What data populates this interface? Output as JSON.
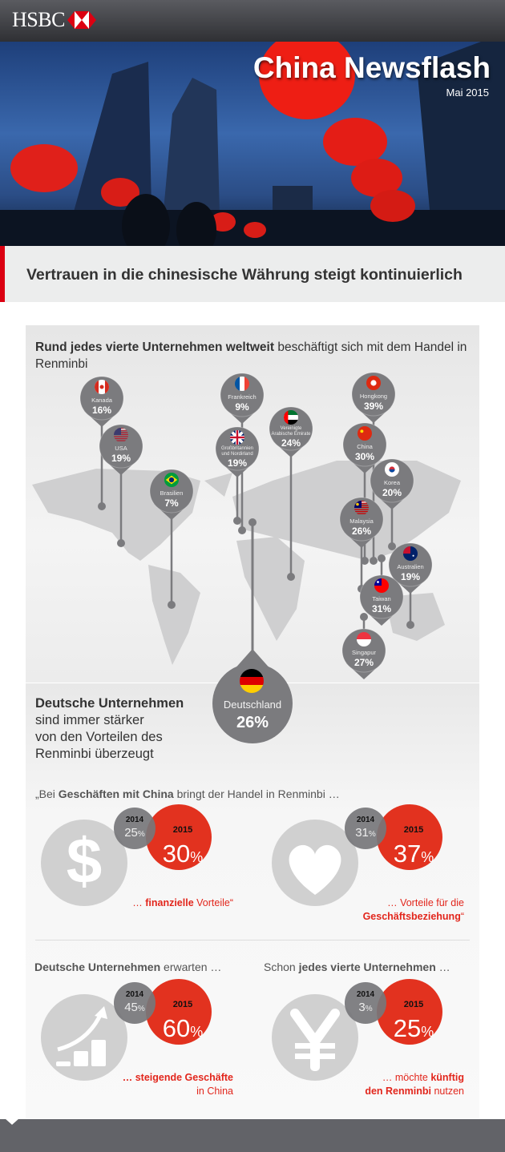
{
  "header": {
    "brand": "HSBC",
    "logo_colors": {
      "red": "#db0011",
      "white": "#ffffff"
    }
  },
  "hero": {
    "title": "China Newsflash",
    "date": "Mai 2015"
  },
  "headline": "Vertrauen in die chinesische Währung steigt kontinuierlich",
  "map_section": {
    "title_bold": "Rund jedes vierte Unternehmen weltweit",
    "title_rest": " beschäftigt sich mit dem Handel in Renminbi",
    "pins": [
      {
        "id": "kanada",
        "label": "Kanada",
        "value": "16%",
        "flag": "canada"
      },
      {
        "id": "usa",
        "label": "USA",
        "value": "19%",
        "flag": "usa"
      },
      {
        "id": "brasilien",
        "label": "Brasilien",
        "value": "7%",
        "flag": "brazil"
      },
      {
        "id": "frankreich",
        "label": "Frankreich",
        "value": "9%",
        "flag": "france"
      },
      {
        "id": "grossbritannien",
        "label": "Großbritannien und Nordirland",
        "value": "19%",
        "flag": "uk"
      },
      {
        "id": "vae",
        "label": "Vereinigte Arabische Emirate",
        "value": "24%",
        "flag": "uae"
      },
      {
        "id": "hongkong",
        "label": "Hongkong",
        "value": "39%",
        "flag": "hongkong"
      },
      {
        "id": "china",
        "label": "China",
        "value": "30%",
        "flag": "china"
      },
      {
        "id": "korea",
        "label": "Korea",
        "value": "20%",
        "flag": "korea"
      },
      {
        "id": "malaysia",
        "label": "Malaysia",
        "value": "26%",
        "flag": "malaysia"
      },
      {
        "id": "australien",
        "label": "Australien",
        "value": "19%",
        "flag": "australia"
      },
      {
        "id": "taiwan",
        "label": "Taiwan",
        "value": "31%",
        "flag": "taiwan"
      },
      {
        "id": "singapur",
        "label": "Singapur",
        "value": "27%",
        "flag": "singapore"
      }
    ],
    "germany": {
      "label": "Deutschland",
      "value": "26%",
      "flag": "germany"
    }
  },
  "germany_section": {
    "line1_bold": "Deutsche Unternehmen",
    "line2": "sind immer stärker",
    "line3": "von den Vorteilen des",
    "line4": "Renminbi überzeugt",
    "quote_pre": "„Bei ",
    "quote_bold": "Geschäften mit China",
    "quote_post": " bringt der Handel in Renminbi …",
    "stats": [
      {
        "icon": "dollar-icon",
        "y2014": "2014",
        "v2014": "25",
        "y2015": "2015",
        "v2015": "30",
        "unit": "%",
        "caption_pre": "… ",
        "caption_bold": "finanzielle",
        "caption_post": " Vorteile“",
        "caption_line2": ""
      },
      {
        "icon": "heart-icon",
        "y2014": "2014",
        "v2014": "31",
        "y2015": "2015",
        "v2015": "37",
        "unit": "%",
        "caption_pre": "… Vorteile für die",
        "caption_bold": "",
        "caption_post": "",
        "caption_line2_bold": "Geschäftsbeziehung",
        "caption_line2": "“"
      },
      {
        "icon": "growth-chart-icon",
        "heading_bold": "Deutsche Unternehmen",
        "heading_rest": " erwarten …",
        "y2014": "2014",
        "v2014": "45",
        "y2015": "2015",
        "v2015": "60",
        "unit": "%",
        "caption_pre": "",
        "caption_bold": "… steigende Geschäfte",
        "caption_post": "",
        "caption_line2": "in China"
      },
      {
        "icon": "yuan-icon",
        "heading_pre": "Schon ",
        "heading_bold": "jedes vierte Unternehmen",
        "heading_rest": " …",
        "y2014": "2014",
        "v2014": "3",
        "y2015": "2015",
        "v2015": "25",
        "unit": "%",
        "caption_pre": "… möchte ",
        "caption_bold": "künftig",
        "caption_post": "",
        "caption_line2_bold": "den Renminbi",
        "caption_line2": " nutzen"
      }
    ]
  },
  "colors": {
    "accent_red": "#e2321f",
    "pin_gray": "#7b7b7e",
    "icon_gray": "#d0d0d0",
    "dark_gray_circle": "#7d7d80"
  }
}
